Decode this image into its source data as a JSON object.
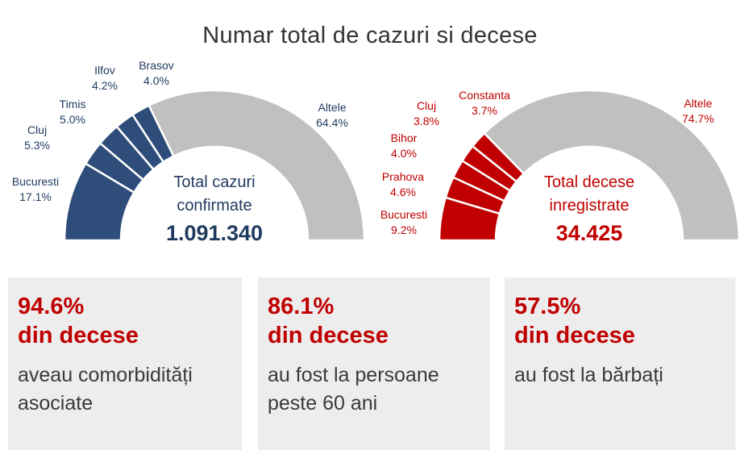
{
  "title": "Numar total de cazuri si decese",
  "colors": {
    "cases": "#2e4d7a",
    "deaths": "#c00000",
    "other": "#c0c0c0",
    "cases_text": "#1f3a5f",
    "deaths_text": "#c00000"
  },
  "chart_data": [
    {
      "type": "pie",
      "style": "half-donut",
      "slices": [
        {
          "label": "Bucuresti",
          "value_label": "17.1%",
          "value": 17.1
        },
        {
          "label": "Cluj",
          "value_label": "5.3%",
          "value": 5.3
        },
        {
          "label": "Timis",
          "value_label": "5.0%",
          "value": 5.0
        },
        {
          "label": "Ilfov",
          "value_label": "4.2%",
          "value": 4.2
        },
        {
          "label": "Brasov",
          "value_label": "4.0%",
          "value": 4.0
        },
        {
          "label": "Altele",
          "value_label": "64.4%",
          "value": 64.4
        }
      ],
      "center_label_1": "Total cazuri",
      "center_label_2": "confirmate",
      "center_value": "1.091.340"
    },
    {
      "type": "pie",
      "style": "half-donut",
      "slices": [
        {
          "label": "Bucuresti",
          "value_label": "9.2%",
          "value": 9.2
        },
        {
          "label": "Prahova",
          "value_label": "4.6%",
          "value": 4.6
        },
        {
          "label": "Bihor",
          "value_label": "4.0%",
          "value": 4.0
        },
        {
          "label": "Cluj",
          "value_label": "3.8%",
          "value": 3.8
        },
        {
          "label": "Constanta",
          "value_label": "3.7%",
          "value": 3.7
        },
        {
          "label": "Altele",
          "value_label": "74.7%",
          "value": 74.7
        }
      ],
      "center_label_1": "Total decese",
      "center_label_2": "inregistrate",
      "center_value": "34.425"
    }
  ],
  "cards": [
    {
      "percent": "94.6%",
      "subtitle": "din decese",
      "line1": "aveau comorbidități",
      "line2": "asociate"
    },
    {
      "percent": "86.1%",
      "subtitle": "din decese",
      "line1": "au fost la persoane",
      "line2": "peste 60 ani"
    },
    {
      "percent": "57.5%",
      "subtitle": "din decese",
      "line1": "au fost la bărbați",
      "line2": ""
    }
  ]
}
